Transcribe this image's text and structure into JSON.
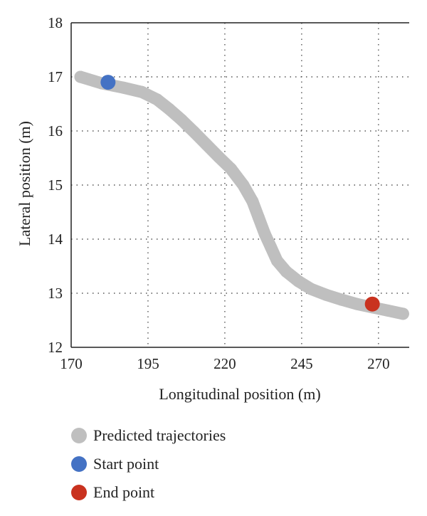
{
  "chart_data": {
    "type": "scatter",
    "xlabel": "Longitudinal position (m)",
    "ylabel": "Lateral position (m)",
    "xlim": [
      170,
      280
    ],
    "ylim": [
      12,
      18
    ],
    "xticks": [
      170,
      195,
      220,
      245,
      270
    ],
    "yticks": [
      12,
      13,
      14,
      15,
      16,
      17,
      18
    ],
    "grid": "dotted",
    "legend_placement": "bottom",
    "series": [
      {
        "name": "Predicted trajectories",
        "color": "#bfbfbf",
        "x": [
          173,
          180,
          187,
          193,
          198,
          202,
          206,
          210,
          214,
          218,
          222,
          226,
          229,
          231,
          233,
          235,
          237,
          240,
          244,
          248,
          253,
          258,
          263,
          268,
          273,
          278
        ],
        "y": [
          17.0,
          16.88,
          16.8,
          16.72,
          16.58,
          16.4,
          16.2,
          15.98,
          15.75,
          15.52,
          15.3,
          15.0,
          14.7,
          14.4,
          14.1,
          13.85,
          13.6,
          13.4,
          13.22,
          13.08,
          12.97,
          12.88,
          12.8,
          12.74,
          12.68,
          12.62
        ]
      },
      {
        "name": "Start point",
        "color": "#4472c4",
        "x": [
          182
        ],
        "y": [
          16.9
        ]
      },
      {
        "name": "End point",
        "color": "#c9321f",
        "x": [
          268
        ],
        "y": [
          12.8
        ]
      }
    ]
  }
}
